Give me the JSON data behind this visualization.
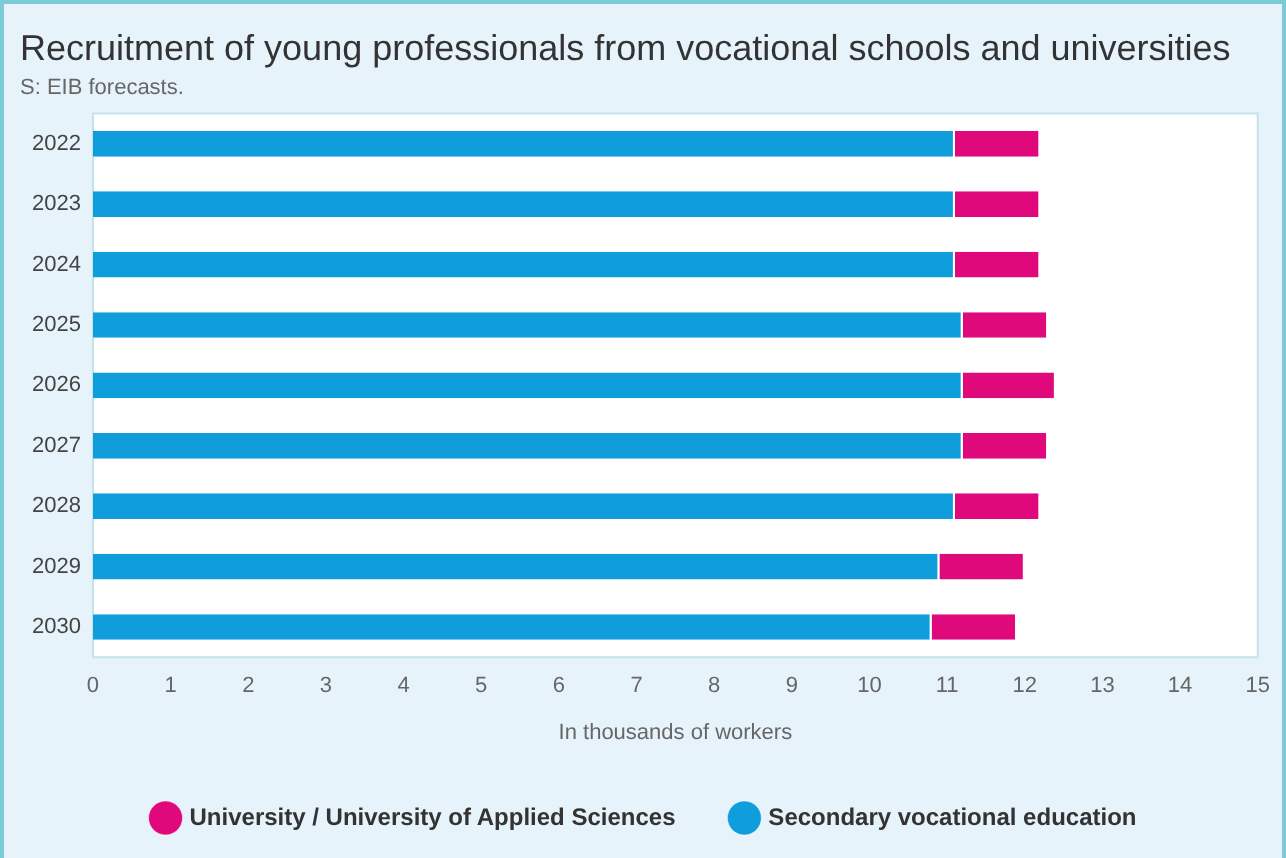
{
  "chart_data": {
    "type": "bar",
    "orientation": "horizontal",
    "stacked": true,
    "title": "Recruitment of young professionals from vocational schools and universities",
    "subtitle": "S: EIB forecasts.",
    "xlabel": "In thousands of workers",
    "categories": [
      "2022",
      "2023",
      "2024",
      "2025",
      "2026",
      "2027",
      "2028",
      "2029",
      "2030"
    ],
    "series": [
      {
        "name": "Secondary vocational education",
        "color": "#109ddb",
        "values": [
          11.1,
          11.1,
          11.1,
          11.2,
          11.2,
          11.2,
          11.1,
          10.9,
          10.8
        ]
      },
      {
        "name": "University / University of Applied Sciences",
        "color": "#e0097c",
        "values": [
          1.1,
          1.1,
          1.1,
          1.1,
          1.2,
          1.1,
          1.1,
          1.1,
          1.1
        ]
      }
    ],
    "xlim": [
      0,
      15
    ],
    "xticks": [
      0,
      1,
      2,
      3,
      4,
      5,
      6,
      7,
      8,
      9,
      10,
      11,
      12,
      13,
      14,
      15
    ],
    "grid": false,
    "legend": "bottom"
  }
}
